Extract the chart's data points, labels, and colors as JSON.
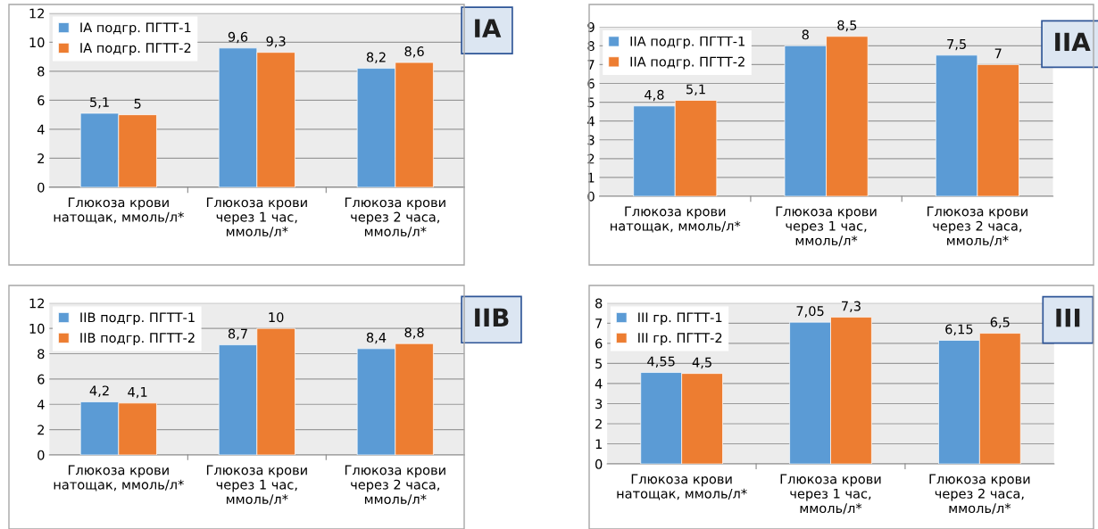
{
  "chart_data": [
    {
      "type": "bar",
      "title": "IA",
      "categories": [
        "Глюкоза крови\nнатощак, ммоль/л*",
        "Глюкоза крови\nчерез 1 час,\nммоль/л*",
        "Глюкоза крови\nчерез 2 часа,\nммоль/л*"
      ],
      "series": [
        {
          "name": "IA подгр. ПГТТ-1",
          "color": "#5b9bd5",
          "values": [
            5.1,
            9.6,
            8.2
          ],
          "value_labels": [
            "5,1",
            "9,6",
            "8,2"
          ]
        },
        {
          "name": "IA подгр. ПГТТ-2",
          "color": "#ed7d31",
          "values": [
            5,
            9.3,
            8.6
          ],
          "value_labels": [
            "5",
            "9,3",
            "8,6"
          ]
        }
      ],
      "ylim": [
        0,
        12
      ],
      "yticks": [
        0,
        2,
        4,
        6,
        8,
        10,
        12
      ],
      "grid": "y",
      "legend": "top left"
    },
    {
      "type": "bar",
      "title": "IIA",
      "categories": [
        "Глюкоза крови\nнатощак, ммоль/л*",
        "Глюкоза крови\nчерез 1 час,\nммоль/л*",
        "Глюкоза крови\nчерез 2 часа,\nммоль/л*"
      ],
      "series": [
        {
          "name": "IIA подгр. ПГТТ-1",
          "color": "#5b9bd5",
          "values": [
            4.8,
            8,
            7.5
          ],
          "value_labels": [
            "4,8",
            "8",
            "7,5"
          ]
        },
        {
          "name": "IIA подгр. ПГТТ-2",
          "color": "#ed7d31",
          "values": [
            5.1,
            8.5,
            7
          ],
          "value_labels": [
            "5,1",
            "8,5",
            "7"
          ]
        }
      ],
      "ylim": [
        0,
        9
      ],
      "yticks": [
        0,
        1,
        2,
        3,
        4,
        5,
        6,
        7,
        8,
        9
      ],
      "grid": "y",
      "legend": "top left"
    },
    {
      "type": "bar",
      "title": "IIB",
      "categories": [
        "Глюкоза крови\nнатощак, ммоль/л*",
        "Глюкоза крови\nчерез 1 час,\nммоль/л*",
        "Глюкоза крови\nчерез 2 часа,\nммоль/л*"
      ],
      "series": [
        {
          "name": "IIB подгр. ПГТТ-1",
          "color": "#5b9bd5",
          "values": [
            4.2,
            8.7,
            8.4
          ],
          "value_labels": [
            "4,2",
            "8,7",
            "8,4"
          ]
        },
        {
          "name": "IIB подгр. ПГТТ-2",
          "color": "#ed7d31",
          "values": [
            4.1,
            10,
            8.8
          ],
          "value_labels": [
            "4,1",
            "10",
            "8,8"
          ]
        }
      ],
      "ylim": [
        0,
        12
      ],
      "yticks": [
        0,
        2,
        4,
        6,
        8,
        10,
        12
      ],
      "grid": "y",
      "legend": "top left"
    },
    {
      "type": "bar",
      "title": "III",
      "categories": [
        "Глюкоза крови\nнатощак, ммоль/л*",
        "Глюкоза крови\nчерез 1 час,\nммоль/л*",
        "Глюкоза крови\nчерез 2 часа,\nммоль/л*"
      ],
      "series": [
        {
          "name": "III гр. ПГТТ-1",
          "color": "#5b9bd5",
          "values": [
            4.55,
            7.05,
            6.15
          ],
          "value_labels": [
            "4,55",
            "7,05",
            "6,15"
          ]
        },
        {
          "name": "III гр. ПГТТ-2",
          "color": "#ed7d31",
          "values": [
            4.5,
            7.3,
            6.5
          ],
          "value_labels": [
            "4,5",
            "7,3",
            "6,5"
          ]
        }
      ],
      "ylim": [
        0,
        8
      ],
      "yticks": [
        0,
        1,
        2,
        3,
        4,
        5,
        6,
        7,
        8
      ],
      "grid": "y",
      "legend": "top left"
    }
  ]
}
